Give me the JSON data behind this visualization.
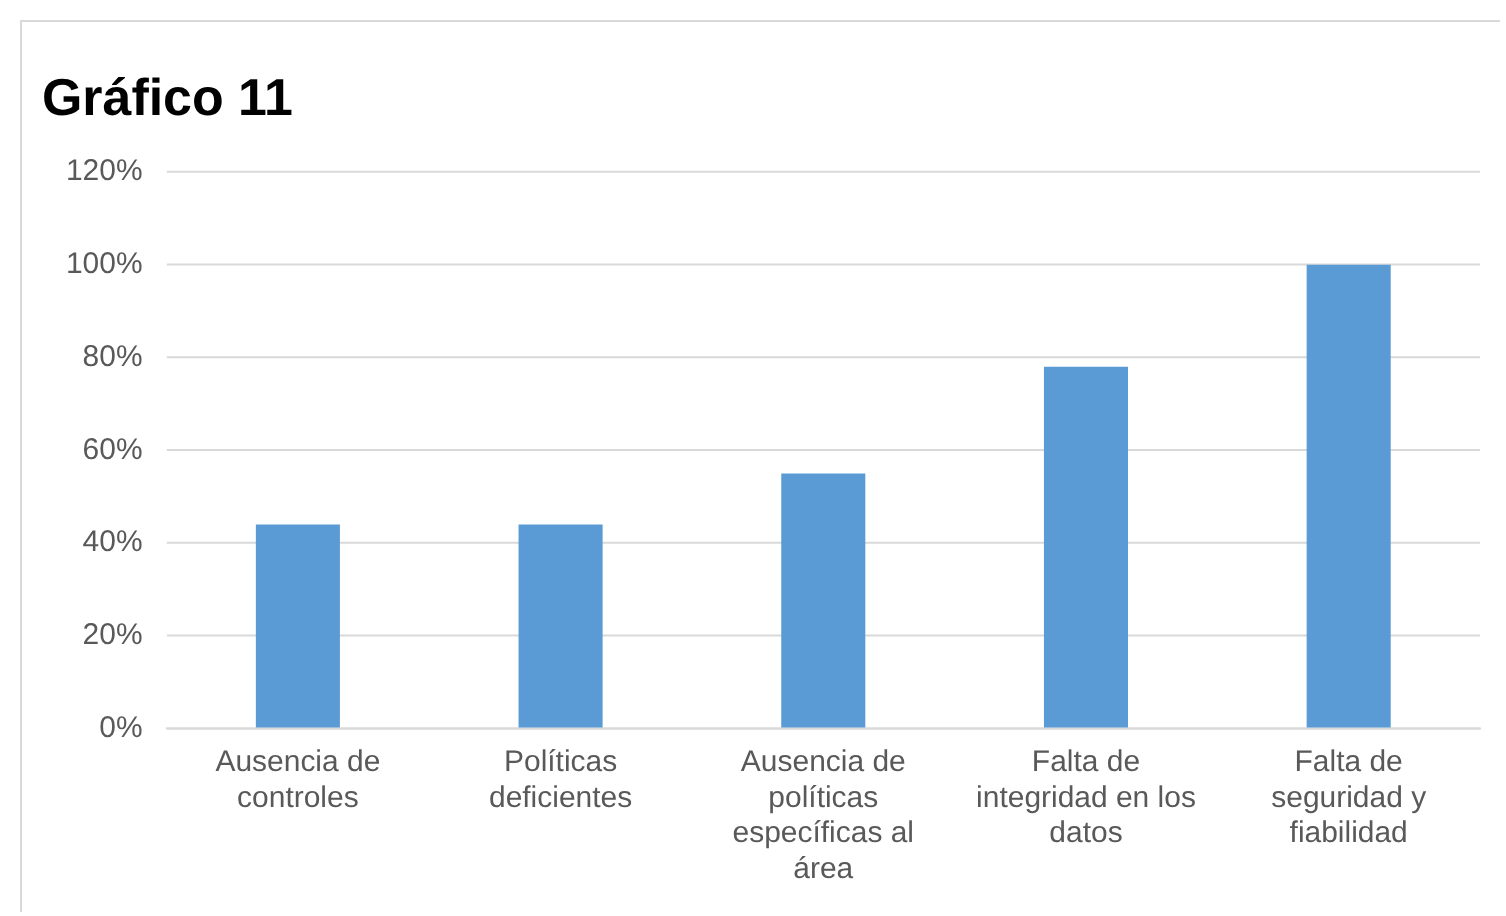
{
  "chart_data": {
    "type": "bar",
    "title": "Gráfico 11",
    "categories": [
      "Ausencia de controles",
      "Políticas deficientes",
      "Ausencia de políticas específicas al área",
      "Falta de integridad en los datos",
      "Falta de seguridad y fiabilidad"
    ],
    "values": [
      44,
      44,
      55,
      78,
      100
    ],
    "color": "#5b9bd5",
    "ylim": [
      0,
      120
    ],
    "yticks": [
      {
        "value": 0,
        "label": "0%"
      },
      {
        "value": 20,
        "label": "20%"
      },
      {
        "value": 40,
        "label": "40%"
      },
      {
        "value": 60,
        "label": "60%"
      },
      {
        "value": 80,
        "label": "80%"
      },
      {
        "value": 100,
        "label": "100%"
      },
      {
        "value": 120,
        "label": "120%"
      }
    ],
    "grid": "y",
    "legend": false
  }
}
